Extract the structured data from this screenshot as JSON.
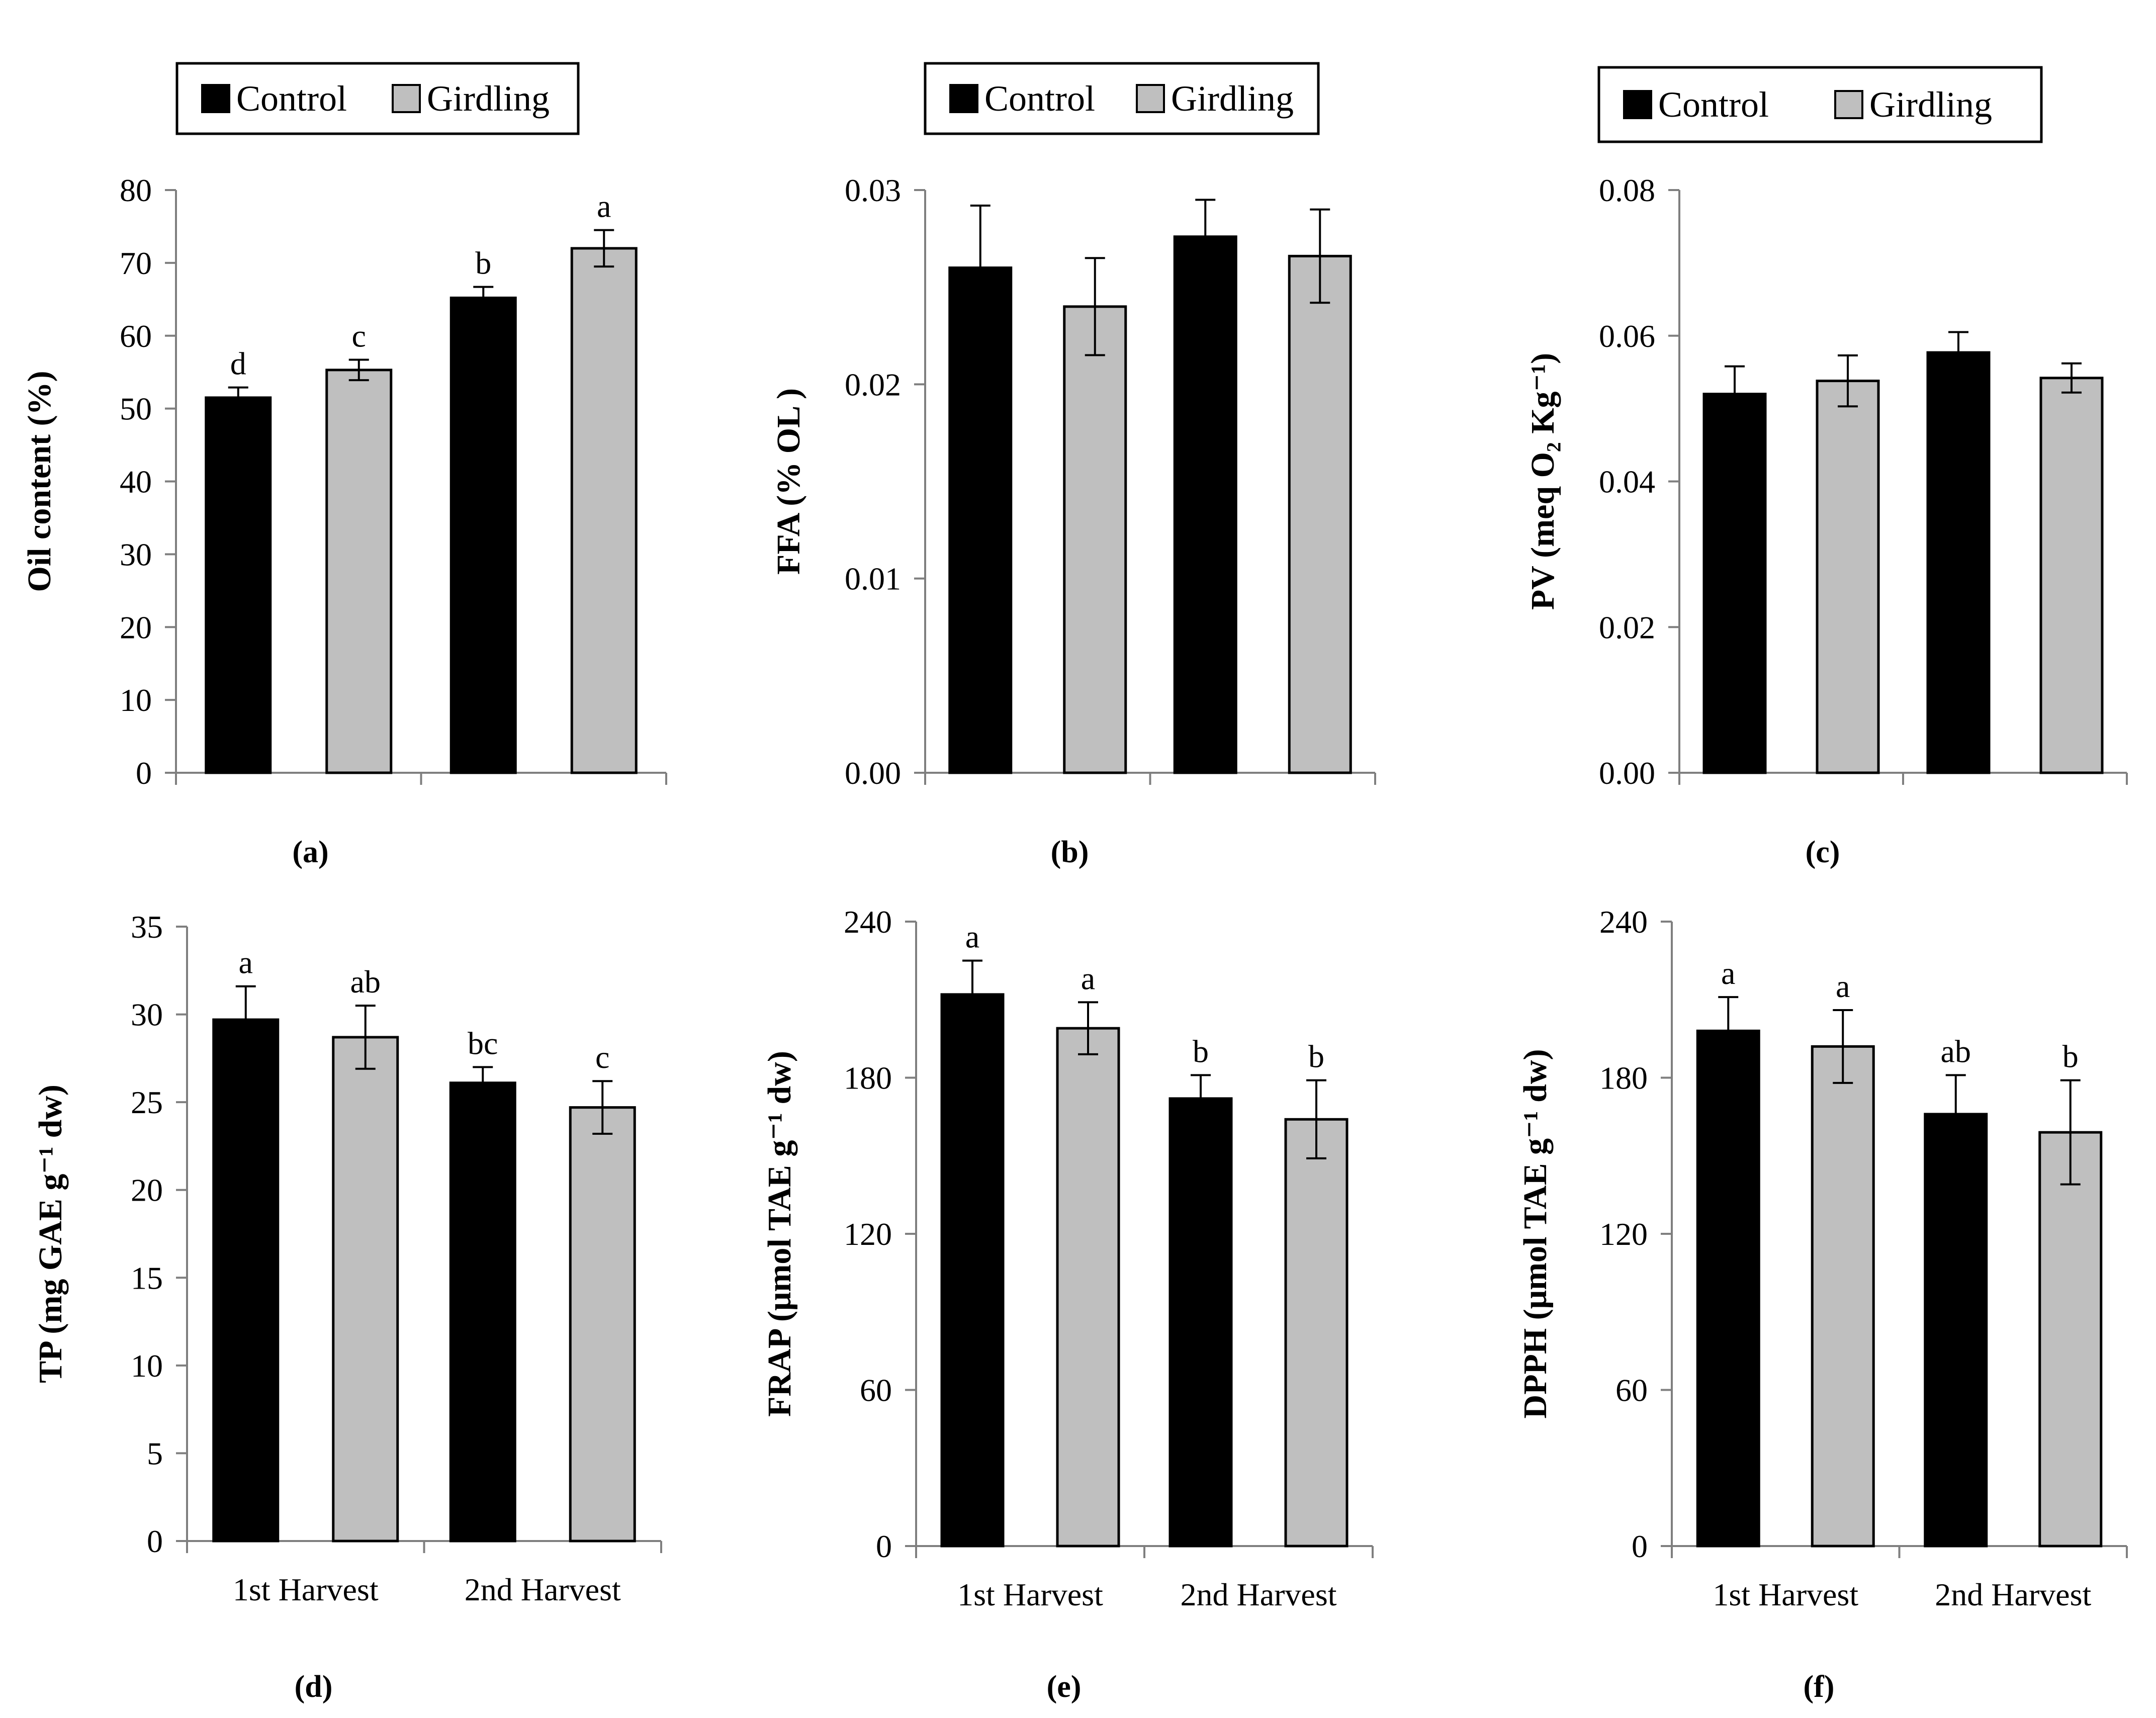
{
  "colors": {
    "Control": "#000000",
    "Girdling": "#bfbfbf",
    "axis": "#7f7f7f"
  },
  "chart_data": [
    {
      "panel": "(a)",
      "type": "bar",
      "ylabel": "Oil content (%)",
      "ylim": [
        0,
        80
      ],
      "yticks": [
        "0",
        "10",
        "20",
        "30",
        "40",
        "50",
        "60",
        "70",
        "80"
      ],
      "categories": [
        "",
        ""
      ],
      "legend": [
        "Control",
        "Girdling"
      ],
      "series": [
        {
          "name": "Control",
          "values": [
            51.5,
            65.2
          ],
          "errors": [
            1.4,
            1.5
          ],
          "labels": [
            "d",
            "b"
          ]
        },
        {
          "name": "Girdling",
          "values": [
            55.3,
            72.0
          ],
          "errors": [
            1.4,
            2.5
          ],
          "labels": [
            "c",
            "a"
          ]
        }
      ]
    },
    {
      "panel": "(b)",
      "type": "bar",
      "ylabel": "FFA (% OL )",
      "ylim": [
        0,
        0.03
      ],
      "yticks": [
        "0.00",
        "0.01",
        "0.02",
        "0.03"
      ],
      "categories": [
        "",
        ""
      ],
      "legend": [
        "Control",
        "Girdling"
      ],
      "series": [
        {
          "name": "Control",
          "values": [
            0.026,
            0.0276
          ],
          "errors": [
            0.0032,
            0.0019
          ],
          "labels": [
            "",
            ""
          ]
        },
        {
          "name": "Girdling",
          "values": [
            0.024,
            0.0266
          ],
          "errors": [
            0.0025,
            0.0024
          ],
          "labels": [
            "",
            ""
          ]
        }
      ]
    },
    {
      "panel": "(c)",
      "type": "bar",
      "ylabel": "PV (meq O₂ Kg⁻¹)",
      "ylim": [
        0,
        0.08
      ],
      "yticks": [
        "0.00",
        "0.02",
        "0.04",
        "0.06",
        "0.08"
      ],
      "categories": [
        "",
        ""
      ],
      "legend": [
        "Control",
        "Girdling"
      ],
      "series": [
        {
          "name": "Control",
          "values": [
            0.052,
            0.0577
          ],
          "errors": [
            0.0038,
            0.0028
          ],
          "labels": [
            "",
            ""
          ]
        },
        {
          "name": "Girdling",
          "values": [
            0.0538,
            0.0542
          ],
          "errors": [
            0.0035,
            0.002
          ],
          "labels": [
            "",
            ""
          ]
        }
      ]
    },
    {
      "panel": "(d)",
      "type": "bar",
      "ylabel": "TP (mg GAE g⁻¹ dw)",
      "ylim": [
        0,
        35
      ],
      "yticks": [
        "0",
        "5",
        "10",
        "15",
        "20",
        "25",
        "30",
        "35"
      ],
      "categories": [
        "1st Harvest",
        "2nd Harvest"
      ],
      "series": [
        {
          "name": "Control",
          "values": [
            29.7,
            26.1
          ],
          "errors": [
            1.9,
            0.9
          ],
          "labels": [
            "a",
            "bc"
          ]
        },
        {
          "name": "Girdling",
          "values": [
            28.7,
            24.7
          ],
          "errors": [
            1.8,
            1.5
          ],
          "labels": [
            "ab",
            "c"
          ]
        }
      ]
    },
    {
      "panel": "(e)",
      "type": "bar",
      "ylabel": "FRAP (μmol TAE g⁻¹ dw)",
      "ylim": [
        0,
        240
      ],
      "yticks": [
        "0",
        "60",
        "120",
        "180",
        "240"
      ],
      "categories": [
        "1st Harvest",
        "2nd Harvest"
      ],
      "series": [
        {
          "name": "Control",
          "values": [
            212,
            172
          ],
          "errors": [
            13,
            9
          ],
          "labels": [
            "a",
            "b"
          ]
        },
        {
          "name": "Girdling",
          "values": [
            199,
            164
          ],
          "errors": [
            10,
            15
          ],
          "labels": [
            "a",
            "b"
          ]
        }
      ]
    },
    {
      "panel": "(f)",
      "type": "bar",
      "ylabel": "DPPH (μmol TAE g⁻¹ dw)",
      "ylim": [
        0,
        240
      ],
      "yticks": [
        "0",
        "60",
        "120",
        "180",
        "240"
      ],
      "categories": [
        "1st Harvest",
        "2nd Harvest"
      ],
      "series": [
        {
          "name": "Control",
          "values": [
            198,
            166
          ],
          "errors": [
            13,
            15
          ],
          "labels": [
            "a",
            "ab"
          ]
        },
        {
          "name": "Girdling",
          "values": [
            192,
            159
          ],
          "errors": [
            14,
            20
          ],
          "labels": [
            "a",
            "b"
          ]
        }
      ]
    }
  ]
}
